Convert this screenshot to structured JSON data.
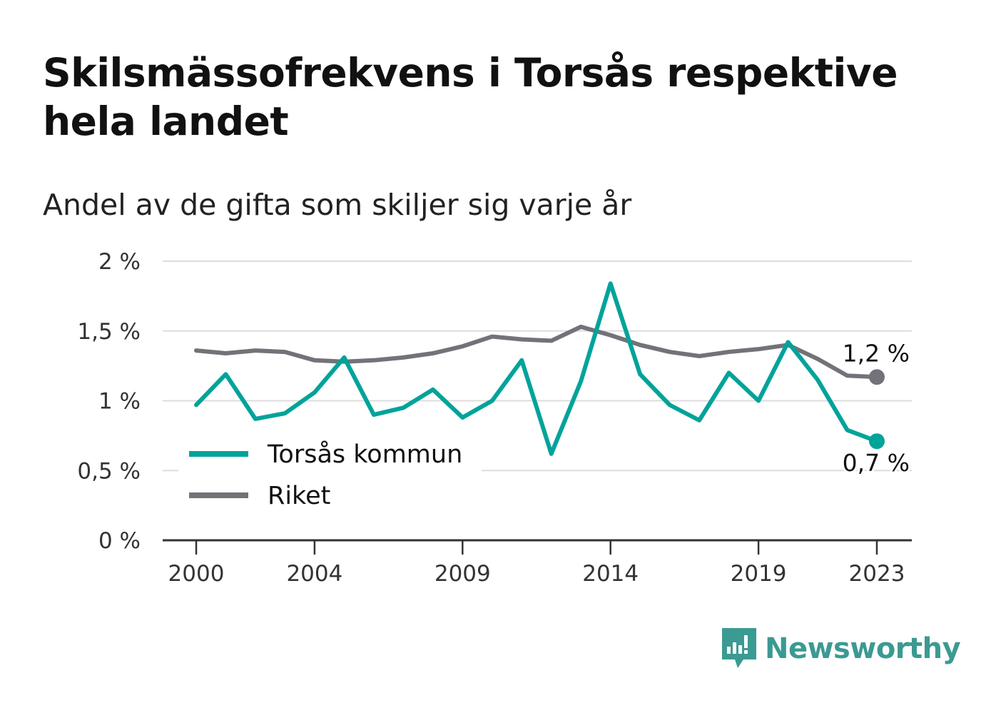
{
  "title": "Skilsmässofrekvens i Torsås respektive hela landet",
  "subtitle": "Andel av de gifta som skiljer sig varje år",
  "brand": "Newsworthy",
  "colors": {
    "torsas": "#00a39a",
    "riket": "#737278",
    "grid": "#dddddd",
    "axis": "#333333",
    "brand": "#3b9a92"
  },
  "chart_data": {
    "type": "line",
    "x": [
      2000,
      2001,
      2002,
      2003,
      2004,
      2005,
      2006,
      2007,
      2008,
      2009,
      2010,
      2011,
      2012,
      2013,
      2014,
      2015,
      2016,
      2017,
      2018,
      2019,
      2020,
      2021,
      2022,
      2023
    ],
    "x_ticks": [
      "2000",
      "2004",
      "2009",
      "2014",
      "2019",
      "2023"
    ],
    "y_ticks": [
      "0 %",
      "0,5 %",
      "1 %",
      "1,5 %",
      "2 %"
    ],
    "ylim": [
      0,
      2
    ],
    "grid": true,
    "legend_position": "bottom-left",
    "series": [
      {
        "name": "Torsås kommun",
        "color": "#00a39a",
        "values": [
          0.97,
          1.19,
          0.87,
          0.91,
          1.06,
          1.31,
          0.9,
          0.95,
          1.08,
          0.88,
          1.0,
          1.29,
          0.62,
          1.14,
          1.84,
          1.19,
          0.97,
          0.86,
          1.2,
          1.0,
          1.42,
          1.15,
          0.79,
          0.71
        ],
        "end_label": "0,7 %"
      },
      {
        "name": "Riket",
        "color": "#737278",
        "values": [
          1.36,
          1.34,
          1.36,
          1.35,
          1.29,
          1.28,
          1.29,
          1.31,
          1.34,
          1.39,
          1.46,
          1.44,
          1.43,
          1.53,
          1.47,
          1.4,
          1.35,
          1.32,
          1.35,
          1.37,
          1.4,
          1.3,
          1.18,
          1.17
        ],
        "end_label": "1,2 %"
      }
    ]
  }
}
